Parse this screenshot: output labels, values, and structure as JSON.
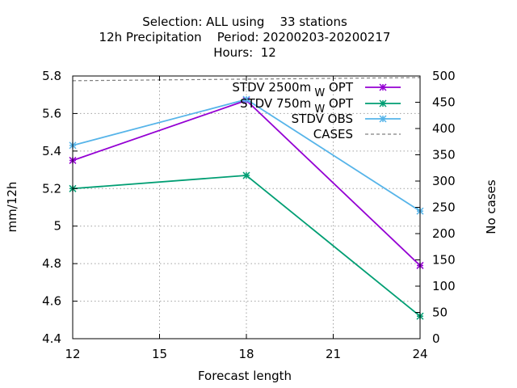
{
  "chart_data": {
    "type": "line",
    "title_lines": [
      "Selection: ALL using    33 stations",
      "12h Precipitation    Period: 20200203-20200217",
      "Hours:  12"
    ],
    "xlabel": "Forecast length",
    "ylabel": "mm/12h",
    "y2label": "No cases",
    "xlim": [
      12,
      24
    ],
    "ylim": [
      4.4,
      5.8
    ],
    "y2lim": [
      0,
      500
    ],
    "xticks": [
      12,
      15,
      18,
      21,
      24
    ],
    "yticks": [
      "4.4",
      "4.6",
      "4.8",
      "5",
      "5.2",
      "5.4",
      "5.6",
      "5.8"
    ],
    "y2ticks": [
      0,
      50,
      100,
      150,
      200,
      250,
      300,
      350,
      400,
      450,
      500
    ],
    "grid": true,
    "legend_position": "top-right",
    "series": [
      {
        "name": "STDV 2500m",
        "sub": "W",
        "suffix": "OPT",
        "color": "#9400d3",
        "axis": "y",
        "marker": "cross",
        "x": [
          12,
          18,
          24
        ],
        "values": [
          5.35,
          5.67,
          4.79
        ]
      },
      {
        "name": "STDV 750m",
        "sub": "W",
        "suffix": "OPT",
        "color": "#009e73",
        "axis": "y",
        "marker": "cross",
        "x": [
          12,
          18,
          24
        ],
        "values": [
          5.2,
          5.27,
          4.52
        ]
      },
      {
        "name": "STDV OBS",
        "sub": "",
        "suffix": "",
        "color": "#56b4e9",
        "axis": "y",
        "marker": "cross",
        "x": [
          12,
          18,
          24
        ],
        "values": [
          5.43,
          5.675,
          5.08
        ]
      },
      {
        "name": "CASES",
        "sub": "",
        "suffix": "",
        "color": "#808080",
        "axis": "y2",
        "marker": "none",
        "dashed": true,
        "x": [
          12,
          18,
          24
        ],
        "values": [
          491,
          494,
          497
        ]
      }
    ]
  }
}
